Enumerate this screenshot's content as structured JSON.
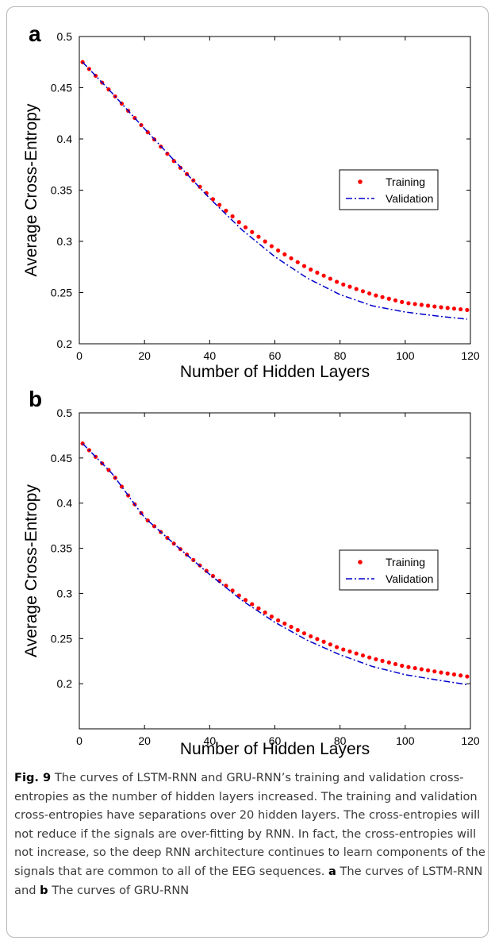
{
  "chart_data": [
    {
      "panel_label": "a",
      "type": "line",
      "xlabel": "Number of Hidden Layers",
      "ylabel": "Average Cross-Entropy",
      "xlim": [
        0,
        120
      ],
      "ylim": [
        0.2,
        0.5
      ],
      "xticks": [
        "0",
        "20",
        "40",
        "60",
        "80",
        "100",
        "120"
      ],
      "yticks": [
        "0.2",
        "0.25",
        "0.3",
        "0.35",
        "0.4",
        "0.45",
        "0.5"
      ],
      "legend_position": "right-middle",
      "series": [
        {
          "name": "Training",
          "style": "dots",
          "color": "#ff0000",
          "x": [
            1,
            10,
            20,
            30,
            40,
            50,
            60,
            70,
            80,
            90,
            100,
            110,
            119
          ],
          "y": [
            0.475,
            0.445,
            0.41,
            0.375,
            0.344,
            0.316,
            0.293,
            0.274,
            0.259,
            0.248,
            0.24,
            0.236,
            0.233
          ]
        },
        {
          "name": "Validation",
          "style": "dash-dot",
          "color": "#0000cc",
          "x": [
            1,
            10,
            20,
            30,
            40,
            50,
            60,
            70,
            80,
            90,
            100,
            110,
            119
          ],
          "y": [
            0.475,
            0.445,
            0.41,
            0.376,
            0.342,
            0.311,
            0.285,
            0.264,
            0.248,
            0.237,
            0.231,
            0.227,
            0.224
          ]
        }
      ]
    },
    {
      "panel_label": "b",
      "type": "line",
      "xlabel": "Number of Hidden Layers",
      "ylabel": "Average Cross-Entropy",
      "xlim": [
        0,
        120
      ],
      "ylim": [
        0.15,
        0.5
      ],
      "xticks": [
        "0",
        "20",
        "40",
        "60",
        "80",
        "100",
        "120"
      ],
      "yticks": [
        "0.2",
        "0.25",
        "0.3",
        "0.35",
        "0.4",
        "0.45",
        "0.5"
      ],
      "legend_position": "right-middle",
      "series": [
        {
          "name": "Training",
          "style": "dots",
          "color": "#ff0000",
          "x": [
            1,
            10,
            20,
            30,
            40,
            50,
            60,
            70,
            80,
            90,
            100,
            110,
            119
          ],
          "y": [
            0.466,
            0.433,
            0.384,
            0.352,
            0.322,
            0.295,
            0.272,
            0.254,
            0.239,
            0.228,
            0.219,
            0.213,
            0.208
          ]
        },
        {
          "name": "Validation",
          "style": "dash-dot",
          "color": "#0000cc",
          "x": [
            1,
            10,
            20,
            30,
            40,
            50,
            60,
            70,
            80,
            90,
            100,
            110,
            119
          ],
          "y": [
            0.466,
            0.433,
            0.384,
            0.352,
            0.321,
            0.292,
            0.268,
            0.248,
            0.232,
            0.219,
            0.21,
            0.204,
            0.199
          ]
        }
      ]
    }
  ],
  "caption": {
    "fig_label": "Fig. 9",
    "text_1": " The curves of LSTM-RNN and GRU-RNN’s training and validation cross-entropies as the number of hidden layers increased. The training and validation cross-entropies have separations over 20 hidden layers. The cross-entropies will not reduce if the signals are over-fitting by RNN. In fact, the cross-entropies will not increase, so the deep RNN architecture continues to learn components of the signals that are common to all of the EEG sequences. ",
    "label_a": "a",
    "text_2": " The curves of LSTM-RNN and ",
    "label_b": "b",
    "text_3": " The curves of GRU-RNN"
  }
}
